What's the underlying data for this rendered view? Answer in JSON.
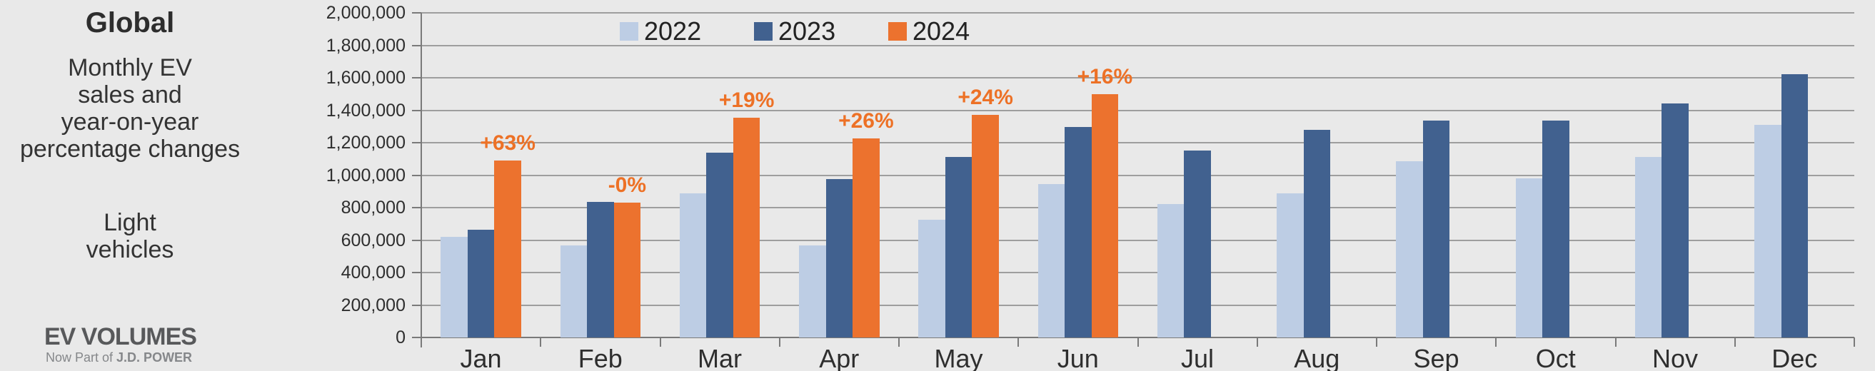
{
  "panel": {
    "title": "Global",
    "subtitle": "Monthly EV\nsales and\nyear-on-year\npercentage changes",
    "vehicle_scope": "Light\nvehicles",
    "logo_text": "EV VOLUMES",
    "logo_tagline_prefix": "Now Part of ",
    "logo_tagline_brand": "J.D. POWER"
  },
  "colors": {
    "background": "#E9E9E9",
    "series_2022": "#BDCDE4",
    "series_2023": "#41618F",
    "series_2024": "#EC722E",
    "pct_label": "#ED7126",
    "gridline": "#9E9E9E",
    "axis": "#7A7A7A",
    "logo_gray": "#58595B",
    "logo_red": "#E4342B"
  },
  "chart_data": {
    "type": "bar",
    "title": "Global monthly EV sales and year-on-year percentage changes, light vehicles",
    "categories": [
      "Jan",
      "Feb",
      "Mar",
      "Apr",
      "May",
      "Jun",
      "Jul",
      "Aug",
      "Sep",
      "Oct",
      "Nov",
      "Dec"
    ],
    "series": [
      {
        "name": "2022",
        "color": "#BDCDE4",
        "values": [
          620000,
          565000,
          890000,
          565000,
          725000,
          945000,
          820000,
          890000,
          1085000,
          980000,
          1110000,
          1310000
        ]
      },
      {
        "name": "2023",
        "color": "#41618F",
        "values": [
          665000,
          835000,
          1140000,
          975000,
          1110000,
          1295000,
          1150000,
          1280000,
          1335000,
          1335000,
          1440000,
          1620000
        ]
      },
      {
        "name": "2024",
        "color": "#EC722E",
        "values": [
          1090000,
          830000,
          1355000,
          1225000,
          1370000,
          1500000,
          null,
          null,
          null,
          null,
          null,
          null
        ]
      }
    ],
    "pct_labels": [
      "+63%",
      "-0%",
      "+19%",
      "+26%",
      "+24%",
      "+16%",
      null,
      null,
      null,
      null,
      null,
      null
    ],
    "xlabel": "",
    "ylabel": "",
    "ylim": [
      0,
      2000000
    ],
    "ytick_step": 200000,
    "ytick_labels": [
      "0",
      "200,000",
      "400,000",
      "600,000",
      "800,000",
      "1,000,000",
      "1,200,000",
      "1,400,000",
      "1,600,000",
      "1,800,000",
      "2,000,000"
    ],
    "grid": true,
    "legend_position": "top-inside"
  }
}
